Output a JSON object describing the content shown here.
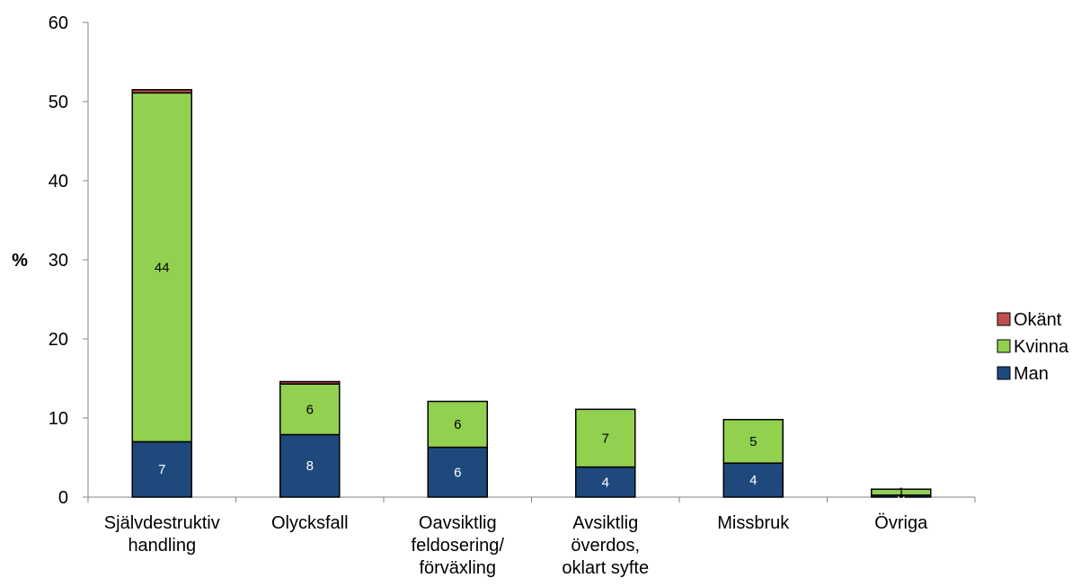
{
  "chart_data": {
    "type": "bar",
    "stacked": true,
    "ylabel": "%",
    "xlabel": "",
    "ylim": [
      0,
      60
    ],
    "yticks": [
      "0",
      "10",
      "20",
      "30",
      "40",
      "50",
      "60"
    ],
    "grid": false,
    "legend_position": "right",
    "categories": [
      [
        "Självdestruktiv",
        "handling"
      ],
      [
        "Olycksfall"
      ],
      [
        "Oavsiktlig",
        "feldosering/",
        "förväxling"
      ],
      [
        "Avsiktlig",
        "överdos,",
        "oklart syfte"
      ],
      [
        "Missbruk"
      ],
      [
        "Övriga"
      ]
    ],
    "series": [
      {
        "name": "Man",
        "color": "#1f497d",
        "label_color": "#ffffff",
        "values": [
          7,
          7.9,
          6.3,
          3.8,
          4.3,
          0.25
        ],
        "labels": [
          "7",
          "8",
          "6",
          "4",
          "4",
          "0"
        ]
      },
      {
        "name": "Kvinna",
        "color": "#92d050",
        "label_color": "#000000",
        "values": [
          44.1,
          6.4,
          5.8,
          7.3,
          5.5,
          0.75
        ],
        "labels": [
          "44",
          "6",
          "6",
          "7",
          "5",
          "1"
        ]
      },
      {
        "name": "Okänt",
        "color": "#c0504d",
        "label_color": "#000000",
        "values": [
          0.4,
          0.3,
          0,
          0,
          0,
          0
        ],
        "labels": [
          "",
          "",
          "",
          "",
          "",
          ""
        ]
      }
    ]
  }
}
